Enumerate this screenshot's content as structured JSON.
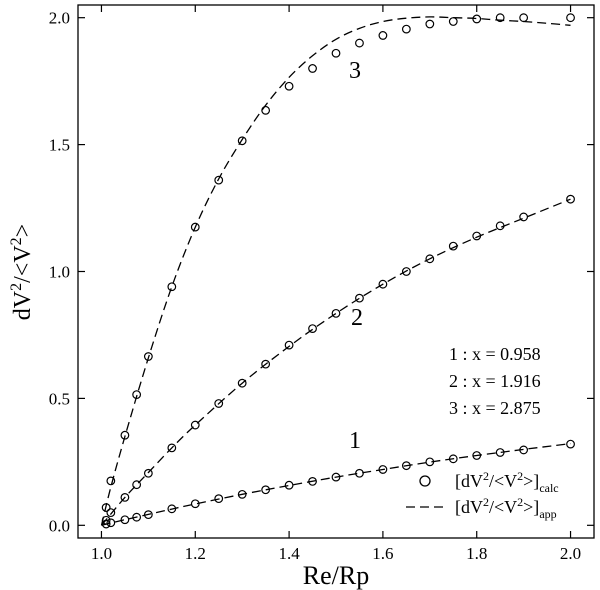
{
  "chart_data": {
    "type": "scatter",
    "xlabel": "Re/Rp",
    "ylabel_main": "dV",
    "ylabel_sup1": "2",
    "ylabel_mid": "/<V",
    "ylabel_sup2": "2",
    "ylabel_end": ">",
    "xlim": [
      0.95,
      2.05
    ],
    "ylim": [
      -0.05,
      2.05
    ],
    "x_ticks": [
      1.0,
      1.2,
      1.4,
      1.6,
      1.8,
      2.0
    ],
    "x_tick_labels": [
      "1.0",
      "1.2",
      "1.4",
      "1.6",
      "1.8",
      "2.0"
    ],
    "y_ticks": [
      0.0,
      0.5,
      1.0,
      1.5,
      2.0
    ],
    "y_tick_labels": [
      "0.0",
      "0.5",
      "1.0",
      "1.5",
      "2.0"
    ],
    "grid": false,
    "legend_position": "bottom-right",
    "series": [
      {
        "label": "1",
        "x_value": "0.958",
        "points_x": [
          1.01,
          1.02,
          1.05,
          1.075,
          1.1,
          1.15,
          1.2,
          1.25,
          1.3,
          1.35,
          1.4,
          1.45,
          1.5,
          1.55,
          1.6,
          1.65,
          1.7,
          1.75,
          1.8,
          1.85,
          1.9,
          2.0
        ],
        "points_y": [
          0.005,
          0.01,
          0.022,
          0.032,
          0.042,
          0.065,
          0.085,
          0.105,
          0.122,
          0.14,
          0.158,
          0.173,
          0.19,
          0.205,
          0.22,
          0.235,
          0.25,
          0.262,
          0.275,
          0.287,
          0.297,
          0.32
        ],
        "curve_x": [
          1.0,
          1.05,
          1.1,
          1.15,
          1.2,
          1.3,
          1.4,
          1.5,
          1.6,
          1.7,
          1.8,
          1.9,
          2.0
        ],
        "curve_y": [
          0.0,
          0.022,
          0.043,
          0.064,
          0.084,
          0.122,
          0.157,
          0.19,
          0.22,
          0.249,
          0.275,
          0.299,
          0.322
        ]
      },
      {
        "label": "2",
        "x_value": "1.916",
        "points_x": [
          1.01,
          1.02,
          1.05,
          1.075,
          1.1,
          1.15,
          1.2,
          1.25,
          1.3,
          1.35,
          1.4,
          1.45,
          1.5,
          1.55,
          1.6,
          1.65,
          1.7,
          1.75,
          1.8,
          1.85,
          1.9,
          2.0
        ],
        "points_y": [
          0.02,
          0.05,
          0.11,
          0.16,
          0.205,
          0.305,
          0.395,
          0.48,
          0.56,
          0.635,
          0.71,
          0.775,
          0.835,
          0.895,
          0.95,
          1.0,
          1.05,
          1.1,
          1.14,
          1.18,
          1.215,
          1.285
        ],
        "curve_x": [
          1.0,
          1.05,
          1.1,
          1.15,
          1.2,
          1.3,
          1.4,
          1.5,
          1.6,
          1.7,
          1.8,
          1.9,
          2.0
        ],
        "curve_y": [
          0.0,
          0.11,
          0.208,
          0.305,
          0.395,
          0.56,
          0.705,
          0.835,
          0.95,
          1.05,
          1.135,
          1.21,
          1.285
        ]
      },
      {
        "label": "3",
        "x_value": "2.875",
        "points_x": [
          1.01,
          1.02,
          1.05,
          1.075,
          1.1,
          1.15,
          1.2,
          1.25,
          1.3,
          1.35,
          1.4,
          1.45,
          1.5,
          1.55,
          1.6,
          1.65,
          1.7,
          1.75,
          1.8,
          1.85,
          1.9,
          2.0
        ],
        "points_y": [
          0.07,
          0.175,
          0.355,
          0.515,
          0.665,
          0.94,
          1.175,
          1.36,
          1.515,
          1.635,
          1.73,
          1.8,
          1.86,
          1.9,
          1.93,
          1.955,
          1.975,
          1.985,
          1.995,
          2.0,
          2.0,
          2.0
        ],
        "curve_x": [
          1.0,
          1.02,
          1.05,
          1.1,
          1.15,
          1.2,
          1.25,
          1.3,
          1.35,
          1.4,
          1.45,
          1.5,
          1.55,
          1.6,
          1.65,
          1.7,
          1.75,
          1.8,
          1.85,
          1.9,
          1.95,
          2.0
        ],
        "curve_y": [
          0.0,
          0.15,
          0.35,
          0.66,
          0.94,
          1.175,
          1.365,
          1.52,
          1.655,
          1.765,
          1.85,
          1.915,
          1.958,
          1.985,
          1.998,
          2.003,
          2.0,
          1.997,
          1.99,
          1.985,
          1.978,
          1.97
        ]
      }
    ],
    "annotation_lines": [
      "1 : x = 0.958",
      "2 : x = 1.916",
      "3 : x = 2.875"
    ],
    "legend": {
      "calc_main": "[dV",
      "calc_sup1": "2",
      "calc_mid": "/<V",
      "calc_sup2": "2",
      "calc_end": ">]",
      "calc_sub": "calc",
      "app_main": "[dV",
      "app_sup1": "2",
      "app_mid": "/<V",
      "app_sup2": "2",
      "app_end": ">]",
      "app_sub": "app"
    }
  }
}
